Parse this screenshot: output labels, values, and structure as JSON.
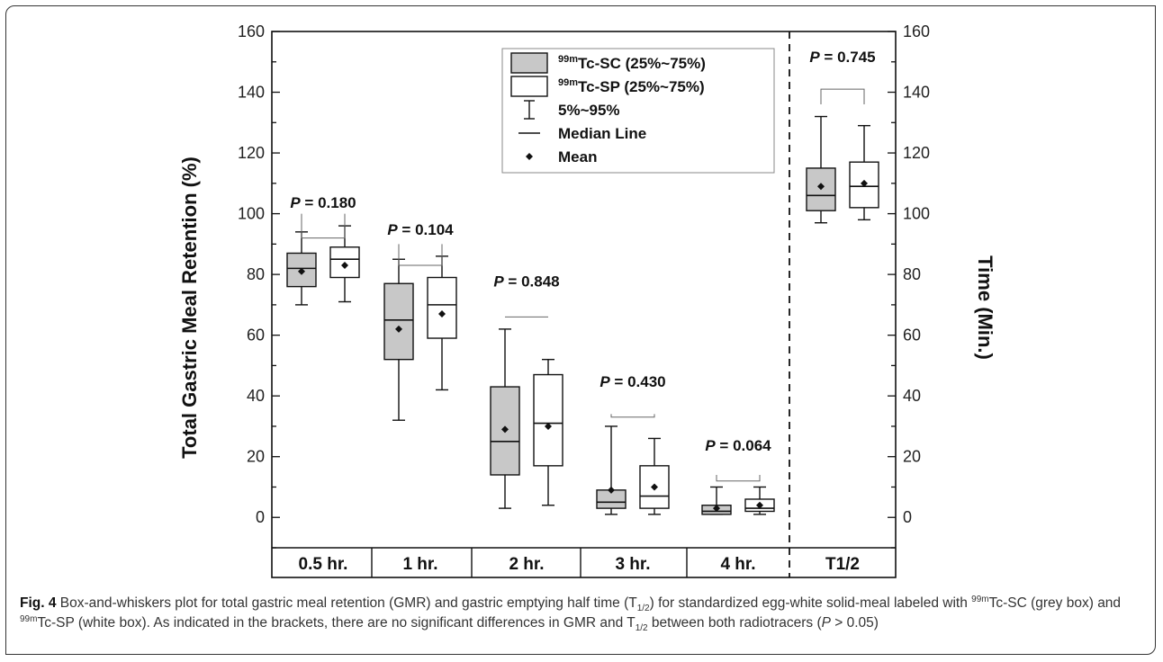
{
  "chart_data": {
    "type": "box",
    "left_axis": {
      "label": "Total Gastric Meal Retention (%)",
      "ylim": [
        -10,
        160
      ],
      "ticks": [
        0,
        20,
        40,
        60,
        80,
        100,
        120,
        140,
        160
      ]
    },
    "right_axis": {
      "label": "Time (Min.)",
      "ylim": [
        -10,
        160
      ],
      "ticks": [
        0,
        20,
        40,
        60,
        80,
        100,
        120,
        140,
        160
      ]
    },
    "categories": [
      "0.5 hr.",
      "1 hr.",
      "2 hr.",
      "3 hr.",
      "4 hr.",
      "T1/2"
    ],
    "series": [
      {
        "name": "99mTc-SC (25%~75%)",
        "fill": "#c8c8c8",
        "boxes": [
          {
            "q1": 76,
            "median": 82,
            "q3": 87,
            "whisker_low": 70,
            "whisker_high": 94,
            "mean": 81
          },
          {
            "q1": 52,
            "median": 65,
            "q3": 77,
            "whisker_low": 32,
            "whisker_high": 85,
            "mean": 62
          },
          {
            "q1": 14,
            "median": 25,
            "q3": 43,
            "whisker_low": 3,
            "whisker_high": 62,
            "mean": 29
          },
          {
            "q1": 3,
            "median": 5,
            "q3": 9,
            "whisker_low": 1,
            "whisker_high": 30,
            "mean": 9
          },
          {
            "q1": 1,
            "median": 2,
            "q3": 4,
            "whisker_low": 1,
            "whisker_high": 10,
            "mean": 3
          },
          {
            "q1": 101,
            "median": 106,
            "q3": 115,
            "whisker_low": 97,
            "whisker_high": 132,
            "mean": 109
          }
        ]
      },
      {
        "name": "99mTc-SP (25%~75%)",
        "fill": "#ffffff",
        "boxes": [
          {
            "q1": 79,
            "median": 85,
            "q3": 89,
            "whisker_low": 71,
            "whisker_high": 96,
            "mean": 83
          },
          {
            "q1": 59,
            "median": 70,
            "q3": 79,
            "whisker_low": 42,
            "whisker_high": 86,
            "mean": 67
          },
          {
            "q1": 17,
            "median": 31,
            "q3": 47,
            "whisker_low": 4,
            "whisker_high": 52,
            "mean": 30
          },
          {
            "q1": 3,
            "median": 7,
            "q3": 17,
            "whisker_low": 1,
            "whisker_high": 26,
            "mean": 10
          },
          {
            "q1": 2,
            "median": 3,
            "q3": 6,
            "whisker_low": 1,
            "whisker_high": 10,
            "mean": 4
          },
          {
            "q1": 102,
            "median": 109,
            "q3": 117,
            "whisker_low": 98,
            "whisker_high": 129,
            "mean": 110
          }
        ]
      }
    ],
    "p_values": [
      "P = 0.180",
      "P = 0.104",
      "P = 0.848",
      "P = 0.430",
      "P = 0.064",
      "P = 0.745"
    ],
    "bracket_level": [
      92,
      83,
      66,
      33,
      12,
      141
    ],
    "label_level": [
      102,
      93,
      76,
      43,
      22,
      150
    ],
    "legend": {
      "placement": "top-center",
      "entries": [
        {
          "sup": "99m",
          "text": "Tc-SC (25%~75%)",
          "symbol": "grey-box"
        },
        {
          "sup": "99m",
          "text": "Tc-SP (25%~75%)",
          "symbol": "white-box"
        },
        {
          "sup": "",
          "text": "5%~95%",
          "symbol": "whisker"
        },
        {
          "sup": "",
          "text": "Median Line",
          "symbol": "line"
        },
        {
          "sup": "",
          "text": "Mean",
          "symbol": "diamond"
        }
      ]
    }
  },
  "caption": {
    "fig_label": "Fig. 4",
    "text_1": " Box-and-whiskers plot for total gastric meal retention (GMR) and gastric emptying half time (T",
    "sub_1": "1/2",
    "text_2": ") for standardized egg-white solid-meal labeled with ",
    "sup_1": "99m",
    "text_3": "Tc-SC (grey box) and ",
    "sup_2": "99m",
    "text_4": "Tc-SP (white box). As indicated in the brackets, there are no significant differences in GMR and T",
    "sub_2": "1/2",
    "text_5": " between both radiotracers (",
    "p_italic": "P",
    "text_6": " > 0.05)"
  }
}
